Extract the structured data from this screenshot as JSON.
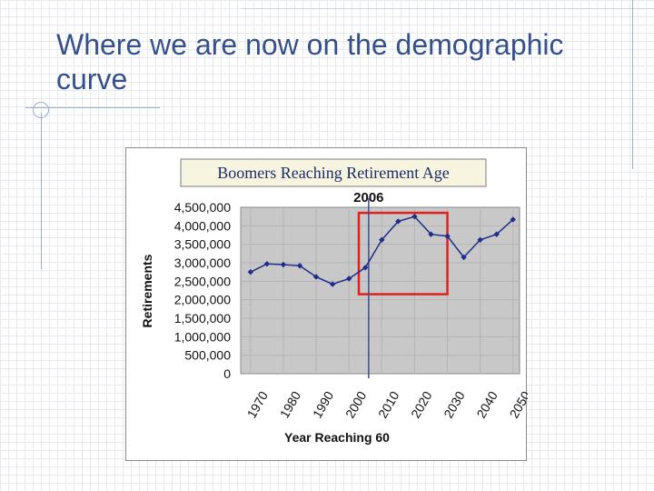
{
  "slide": {
    "title": "Where we are now on the demographic curve"
  },
  "chart_data": {
    "type": "line",
    "title": "Boomers Reaching Retirement Age",
    "xlabel": "Year Reaching 60",
    "ylabel": "Retirements",
    "x": [
      1970,
      1975,
      1980,
      1985,
      1990,
      1995,
      2000,
      2005,
      2010,
      2015,
      2020,
      2025,
      2030,
      2035,
      2040,
      2045,
      2050
    ],
    "series": [
      {
        "values": [
          2750000,
          2970000,
          2950000,
          2920000,
          2620000,
          2420000,
          2570000,
          2870000,
          3620000,
          4120000,
          4250000,
          3770000,
          3720000,
          3150000,
          3620000,
          3770000,
          4170000
        ],
        "color": "#1f2d8a"
      }
    ],
    "x_tick_labels": [
      "1970",
      "1980",
      "1990",
      "2000",
      "2010",
      "2020",
      "2030",
      "2040",
      "2050"
    ],
    "y_tick_labels": [
      "0",
      "500,000",
      "1,000,000",
      "1,500,000",
      "2,000,000",
      "2,500,000",
      "3,000,000",
      "3,500,000",
      "4,000,000",
      "4,500,000"
    ],
    "ylim": [
      0,
      4500000
    ],
    "xlim": [
      1967,
      2052
    ],
    "grid": true,
    "plot_background": "#c8c8c8",
    "annotations": {
      "marker_line": {
        "x": 2006,
        "label": "2006",
        "color": "#3f4a9a"
      },
      "highlight_box": {
        "x_range": [
          2003,
          2030
        ],
        "y_range": [
          2150000,
          4350000
        ],
        "color": "#e0201c"
      }
    }
  }
}
